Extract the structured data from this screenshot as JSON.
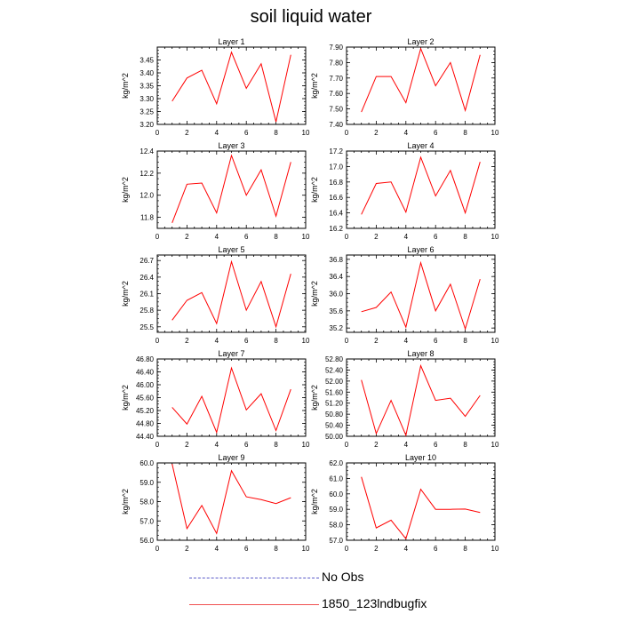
{
  "title": "soil liquid water",
  "legend": [
    {
      "label": "No Obs",
      "style": "dashed",
      "color": "#5a5ac8"
    },
    {
      "label": "1850_123lndbugfix",
      "style": "solid",
      "color": "#ff0000"
    }
  ],
  "chart_data": [
    {
      "type": "line",
      "title": "Layer 1",
      "ylabel": "kg/m^2",
      "xlim": [
        0,
        10
      ],
      "ylim": [
        3.2,
        3.5
      ],
      "xticks": [
        "0",
        "2",
        "4",
        "6",
        "8",
        "10"
      ],
      "yticks": [
        "3.20",
        "3.25",
        "3.30",
        "3.35",
        "3.40",
        "3.45"
      ],
      "series": [
        {
          "color": "#ff0000",
          "x": [
            1,
            2,
            3,
            4,
            5,
            6,
            7,
            8,
            9
          ],
          "values": [
            3.29,
            3.38,
            3.41,
            3.28,
            3.48,
            3.34,
            3.435,
            3.21,
            3.47
          ]
        }
      ]
    },
    {
      "type": "line",
      "title": "Layer 2",
      "ylabel": "kg/m^2",
      "xlim": [
        0,
        10
      ],
      "ylim": [
        7.4,
        7.9
      ],
      "xticks": [
        "0",
        "2",
        "4",
        "6",
        "8",
        "10"
      ],
      "yticks": [
        "7.40",
        "7.50",
        "7.60",
        "7.70",
        "7.80",
        "7.90"
      ],
      "series": [
        {
          "color": "#ff0000",
          "x": [
            1,
            2,
            3,
            4,
            5,
            6,
            7,
            8,
            9
          ],
          "values": [
            7.48,
            7.71,
            7.71,
            7.54,
            7.89,
            7.65,
            7.8,
            7.49,
            7.85
          ]
        }
      ]
    },
    {
      "type": "line",
      "title": "Layer 3",
      "ylabel": "kg/m^2",
      "xlim": [
        0,
        10
      ],
      "ylim": [
        11.7,
        12.4
      ],
      "xticks": [
        "0",
        "2",
        "4",
        "6",
        "8",
        "10"
      ],
      "yticks": [
        "11.8",
        "12.0",
        "12.2",
        "12.4"
      ],
      "series": [
        {
          "color": "#ff0000",
          "x": [
            1,
            2,
            3,
            4,
            5,
            6,
            7,
            8,
            9
          ],
          "values": [
            11.75,
            12.1,
            12.11,
            11.84,
            12.36,
            12.0,
            12.23,
            11.81,
            12.3
          ]
        }
      ]
    },
    {
      "type": "line",
      "title": "Layer 4",
      "ylabel": "kg/m^2",
      "xlim": [
        0,
        10
      ],
      "ylim": [
        16.2,
        17.2
      ],
      "xticks": [
        "0",
        "2",
        "4",
        "6",
        "8",
        "10"
      ],
      "yticks": [
        "16.2",
        "16.4",
        "16.6",
        "16.8",
        "17.0",
        "17.2"
      ],
      "series": [
        {
          "color": "#ff0000",
          "x": [
            1,
            2,
            3,
            4,
            5,
            6,
            7,
            8,
            9
          ],
          "values": [
            16.38,
            16.78,
            16.8,
            16.41,
            17.12,
            16.62,
            16.95,
            16.4,
            17.06
          ]
        }
      ]
    },
    {
      "type": "line",
      "title": "Layer 5",
      "ylabel": "kg/m^2",
      "xlim": [
        0,
        10
      ],
      "ylim": [
        25.4,
        26.8
      ],
      "xticks": [
        "0",
        "2",
        "4",
        "6",
        "8",
        "10"
      ],
      "yticks": [
        "25.5",
        "25.8",
        "26.1",
        "26.4",
        "26.7"
      ],
      "series": [
        {
          "color": "#ff0000",
          "x": [
            1,
            2,
            3,
            4,
            5,
            6,
            7,
            8,
            9
          ],
          "values": [
            25.62,
            25.98,
            26.12,
            25.56,
            26.68,
            25.8,
            26.32,
            25.5,
            26.46
          ]
        }
      ]
    },
    {
      "type": "line",
      "title": "Layer 6",
      "ylabel": "kg/m^2",
      "xlim": [
        0,
        10
      ],
      "ylim": [
        35.1,
        36.9
      ],
      "xticks": [
        "0",
        "2",
        "4",
        "6",
        "8",
        "10"
      ],
      "yticks": [
        "35.2",
        "35.6",
        "36.0",
        "36.4",
        "36.8"
      ],
      "series": [
        {
          "color": "#ff0000",
          "x": [
            1,
            2,
            3,
            4,
            5,
            6,
            7,
            8,
            9
          ],
          "values": [
            35.58,
            35.68,
            36.04,
            35.22,
            36.72,
            35.6,
            36.22,
            35.18,
            36.34
          ]
        }
      ]
    },
    {
      "type": "line",
      "title": "Layer 7",
      "ylabel": "kg/m^2",
      "xlim": [
        0,
        10
      ],
      "ylim": [
        44.4,
        46.8
      ],
      "xticks": [
        "0",
        "2",
        "4",
        "6",
        "8",
        "10"
      ],
      "yticks": [
        "44.40",
        "44.80",
        "45.20",
        "45.60",
        "46.00",
        "46.40",
        "46.80"
      ],
      "series": [
        {
          "color": "#ff0000",
          "x": [
            1,
            2,
            3,
            4,
            5,
            6,
            7,
            8,
            9
          ],
          "values": [
            45.3,
            44.78,
            45.64,
            44.52,
            46.52,
            45.22,
            45.72,
            44.58,
            45.86
          ]
        }
      ]
    },
    {
      "type": "line",
      "title": "Layer 8",
      "ylabel": "kg/m^2",
      "xlim": [
        0,
        10
      ],
      "ylim": [
        50.0,
        52.8
      ],
      "xticks": [
        "0",
        "2",
        "4",
        "6",
        "8",
        "10"
      ],
      "yticks": [
        "50.00",
        "50.40",
        "50.80",
        "51.20",
        "51.60",
        "52.00",
        "52.40",
        "52.80"
      ],
      "series": [
        {
          "color": "#ff0000",
          "x": [
            1,
            2,
            3,
            4,
            5,
            6,
            7,
            8,
            9
          ],
          "values": [
            52.04,
            50.1,
            51.3,
            50.04,
            52.56,
            51.3,
            51.38,
            50.72,
            51.48
          ]
        }
      ]
    },
    {
      "type": "line",
      "title": "Layer 9",
      "ylabel": "kg/m^2",
      "xlim": [
        0,
        10
      ],
      "ylim": [
        56.0,
        60.0
      ],
      "xticks": [
        "0",
        "2",
        "4",
        "6",
        "8",
        "10"
      ],
      "yticks": [
        "56.0",
        "57.0",
        "58.0",
        "59.0",
        "60.0"
      ],
      "series": [
        {
          "color": "#ff0000",
          "x": [
            1,
            2,
            3,
            4,
            5,
            6,
            7,
            8,
            9
          ],
          "values": [
            59.95,
            56.6,
            57.8,
            56.35,
            59.6,
            58.25,
            58.1,
            57.9,
            58.2
          ]
        }
      ]
    },
    {
      "type": "line",
      "title": "Layer 10",
      "ylabel": "kg/m^2",
      "xlim": [
        0,
        10
      ],
      "ylim": [
        57.0,
        62.0
      ],
      "xticks": [
        "0",
        "2",
        "4",
        "6",
        "8",
        "10"
      ],
      "yticks": [
        "57.0",
        "58.0",
        "59.0",
        "60.0",
        "61.0",
        "62.0"
      ],
      "series": [
        {
          "color": "#ff0000",
          "x": [
            1,
            2,
            3,
            4,
            5,
            6,
            7,
            8,
            9
          ],
          "values": [
            61.1,
            57.8,
            58.3,
            57.1,
            60.3,
            59.0,
            59.0,
            59.02,
            58.8
          ]
        }
      ]
    }
  ]
}
